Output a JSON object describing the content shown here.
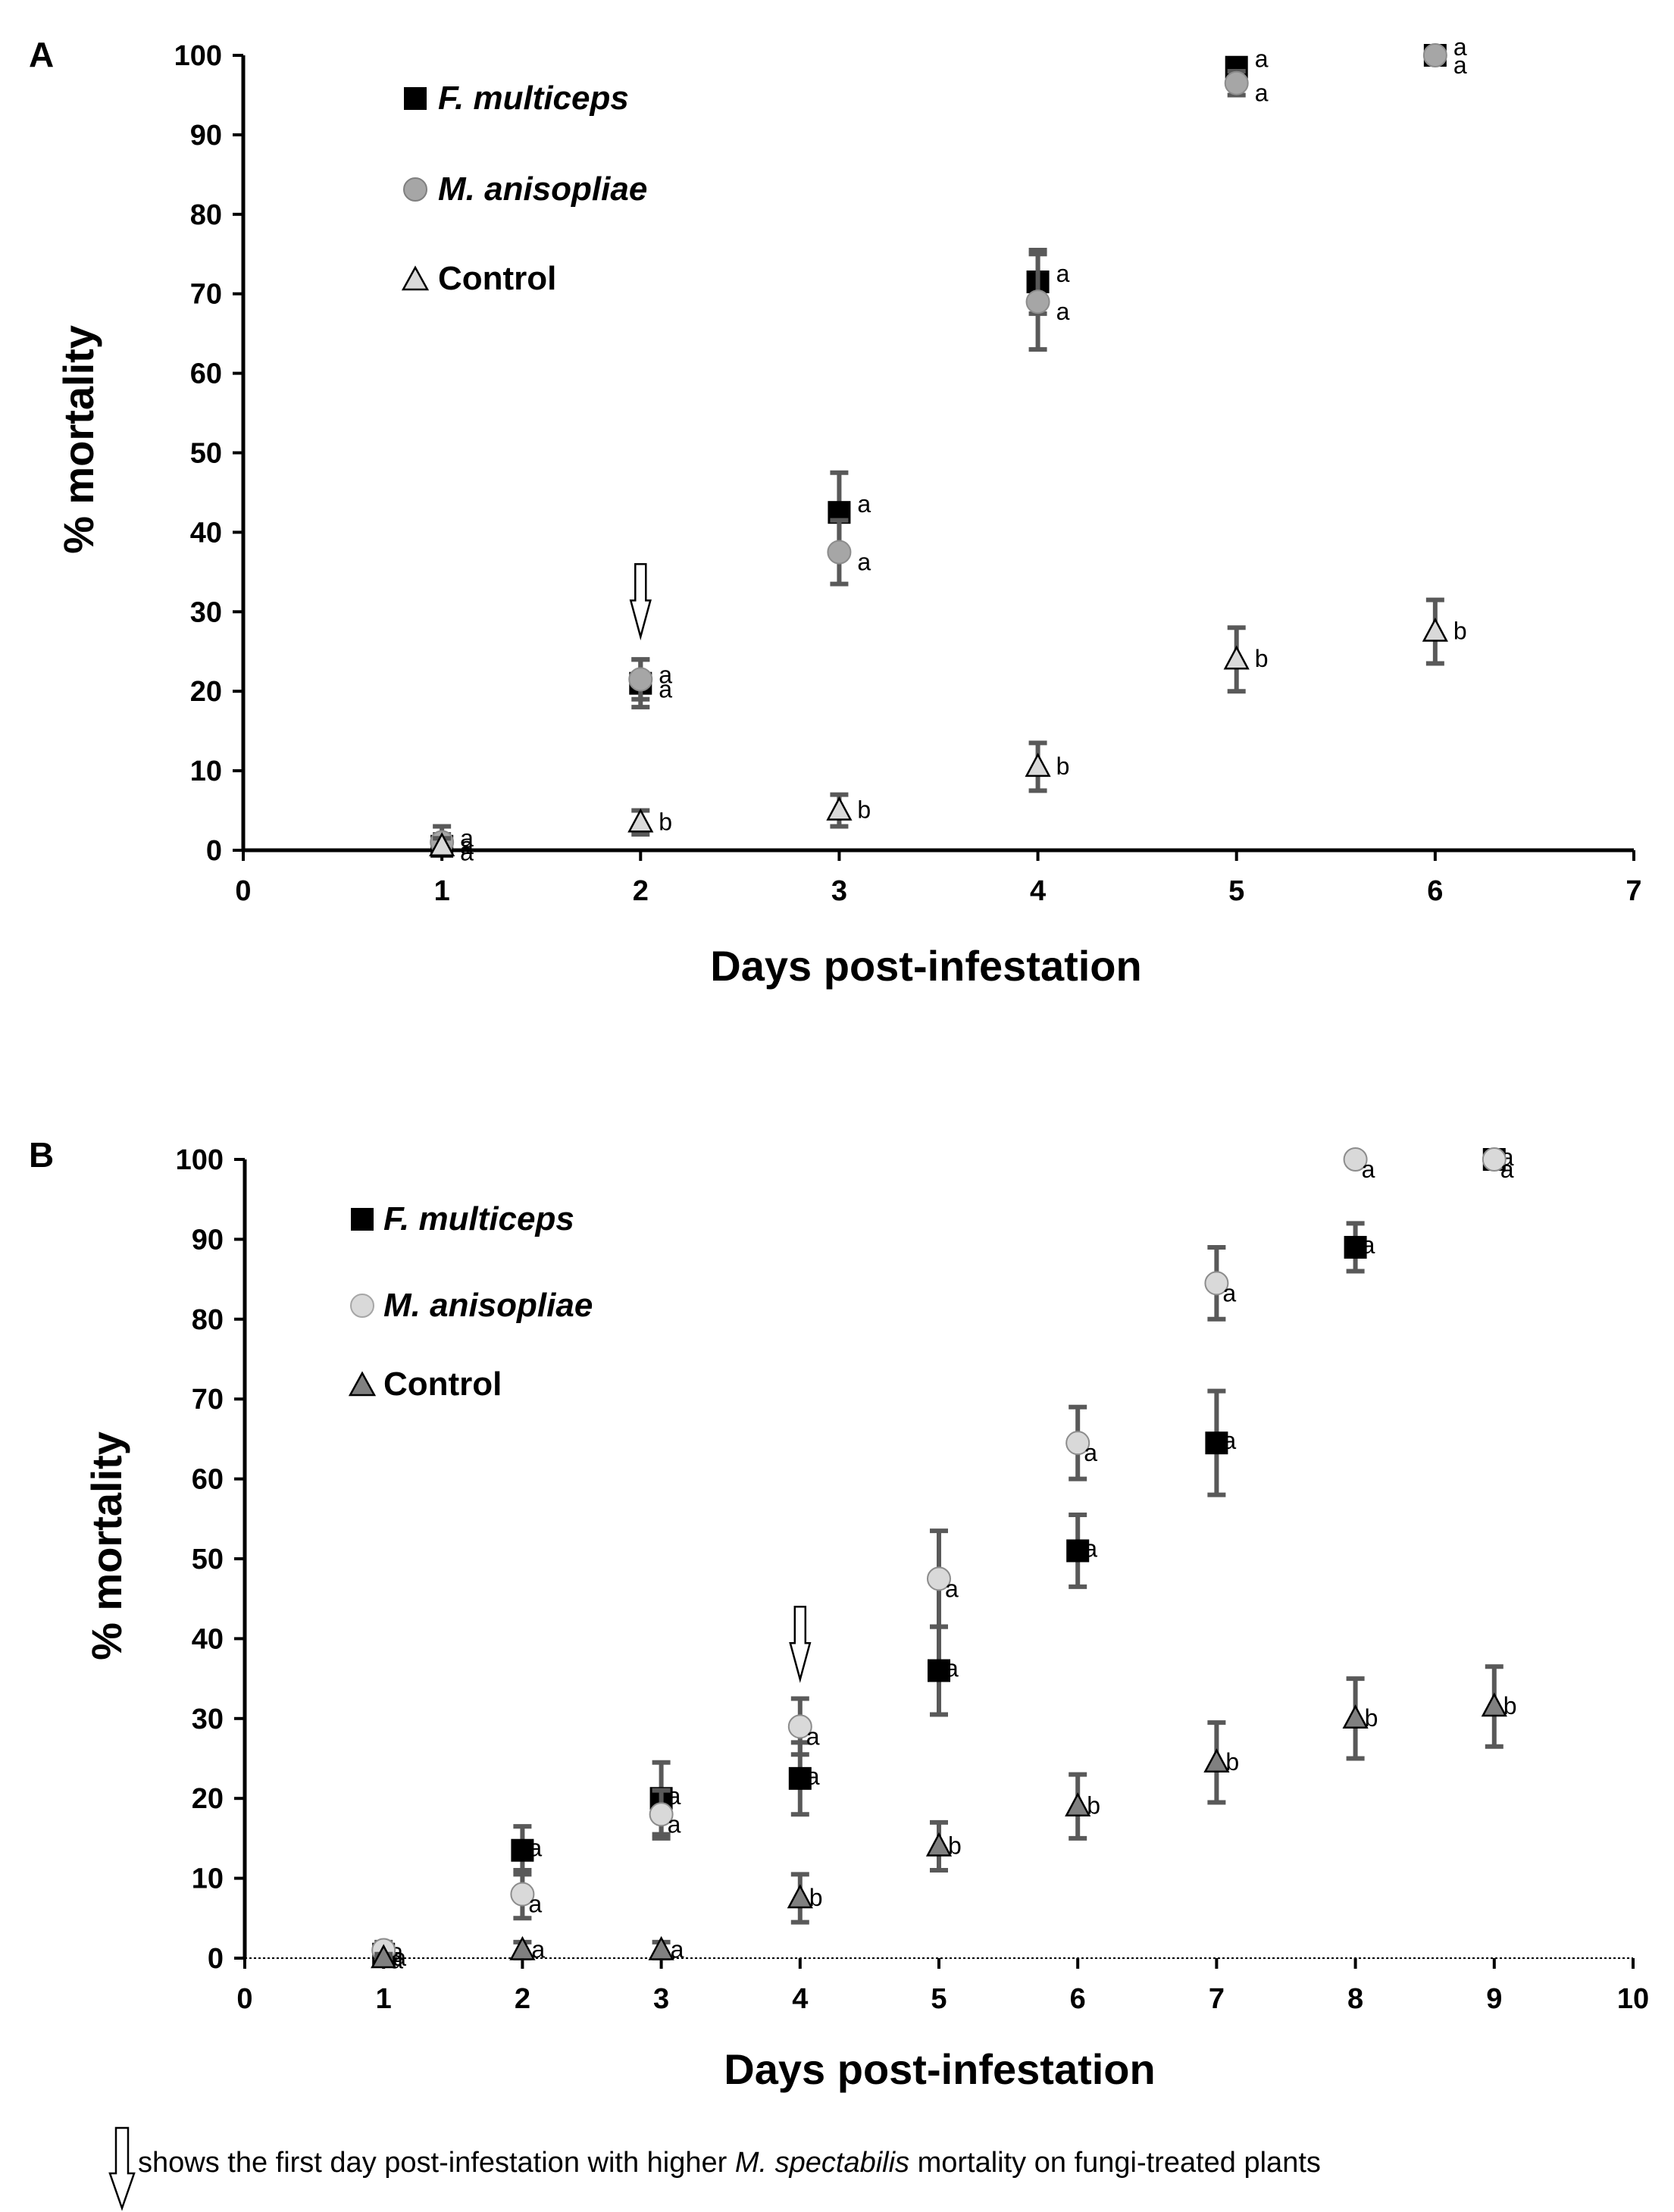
{
  "figure_note": {
    "before": "shows the first day post-infestation with higher ",
    "species": "M. spectabilis",
    "after": " mortality on fungi-treated plants",
    "icon": "down-arrow-icon"
  },
  "chart_data": [
    {
      "panel": "A",
      "type": "scatter",
      "xlabel": "Days post-infestation",
      "ylabel": "% mortality",
      "xlim": [
        0,
        7
      ],
      "ylim": [
        0,
        100
      ],
      "xticks": [
        "0",
        "1",
        "2",
        "3",
        "4",
        "5",
        "6",
        "7"
      ],
      "yticks": [
        "0",
        "10",
        "20",
        "30",
        "40",
        "50",
        "60",
        "70",
        "80",
        "90",
        "100"
      ],
      "legend_position": "top-left",
      "baseline_style": "solid",
      "arrow_day": 2,
      "colors": {
        "f_multiceps": "#000000",
        "m_anisopliae": "#a6a6a6",
        "control": "#d9d9d9",
        "error_bar": "#595959"
      },
      "series": [
        {
          "key": "f_multiceps",
          "name": "F. multiceps",
          "marker": "square",
          "x": [
            1,
            2,
            3,
            4,
            5,
            6
          ],
          "y": [
            0.5,
            21.0,
            42.5,
            71.5,
            98.5,
            100
          ],
          "err": [
            1.5,
            3.0,
            5.0,
            4.0,
            1.0,
            0
          ],
          "letters": [
            "a",
            "a",
            "a",
            "a",
            "a",
            "a"
          ]
        },
        {
          "key": "m_anisopliae",
          "name": "M. anisopliae",
          "marker": "circle",
          "x": [
            1,
            2,
            3,
            4,
            5,
            6
          ],
          "y": [
            1.0,
            21.5,
            37.5,
            69.0,
            96.5,
            100
          ],
          "err": [
            2.0,
            2.5,
            4.0,
            6.0,
            1.5,
            0
          ],
          "letters": [
            "a",
            "a",
            "a",
            "a",
            "a",
            "a"
          ]
        },
        {
          "key": "control",
          "name": "Control",
          "marker": "triangle",
          "x": [
            1,
            2,
            3,
            4,
            5,
            6
          ],
          "y": [
            0.5,
            3.5,
            5.0,
            10.5,
            24.0,
            27.5
          ],
          "err": [
            1.0,
            1.5,
            2.0,
            3.0,
            4.0,
            4.0
          ],
          "letters": [
            "a",
            "b",
            "b",
            "b",
            "b",
            "b"
          ]
        }
      ]
    },
    {
      "panel": "B",
      "type": "scatter",
      "xlabel": "Days post-infestation",
      "ylabel": "% mortality",
      "xlim": [
        0,
        10
      ],
      "ylim": [
        0,
        100
      ],
      "xticks": [
        "0",
        "1",
        "2",
        "3",
        "4",
        "5",
        "6",
        "7",
        "8",
        "9",
        "10"
      ],
      "yticks": [
        "0",
        "10",
        "20",
        "30",
        "40",
        "50",
        "60",
        "70",
        "80",
        "90",
        "100"
      ],
      "legend_position": "top-left",
      "baseline_style": "dotted",
      "arrow_day": 4,
      "colors": {
        "f_multiceps": "#000000",
        "m_anisopliae": "#d9d9d9",
        "control": "#808080",
        "error_bar": "#595959"
      },
      "series": [
        {
          "key": "f_multiceps",
          "name": "F. multiceps",
          "marker": "square",
          "x": [
            1,
            2,
            3,
            4,
            5,
            6,
            7,
            8,
            9
          ],
          "y": [
            0.5,
            13.5,
            20.0,
            22.5,
            36.0,
            51.0,
            64.5,
            89.0,
            100
          ],
          "err": [
            1.0,
            3.0,
            4.5,
            4.5,
            5.5,
            4.5,
            6.5,
            3.0,
            0
          ],
          "letters": [
            "a",
            "a",
            "a",
            "a",
            "a",
            "a",
            "a",
            "a",
            "a"
          ]
        },
        {
          "key": "m_anisopliae",
          "name": "M. anisopliae",
          "marker": "circle",
          "x": [
            1,
            2,
            3,
            4,
            5,
            6,
            7,
            8,
            9
          ],
          "y": [
            1.0,
            8.0,
            18.0,
            29.0,
            47.5,
            64.5,
            84.5,
            100,
            100
          ],
          "err": [
            1.0,
            3.0,
            3.0,
            3.5,
            6.0,
            4.5,
            4.5,
            0,
            0
          ],
          "letters": [
            "a",
            "a",
            "a",
            "a",
            "a",
            "a",
            "a",
            "a",
            "a"
          ]
        },
        {
          "key": "control",
          "name": "Control",
          "marker": "triangle",
          "x": [
            1,
            2,
            3,
            4,
            5,
            6,
            7,
            8,
            9
          ],
          "y": [
            0.0,
            1.0,
            1.0,
            7.5,
            14.0,
            19.0,
            24.5,
            30.0,
            31.5
          ],
          "err": [
            0.5,
            1.0,
            1.0,
            3.0,
            3.0,
            4.0,
            5.0,
            5.0,
            5.0
          ],
          "letters": [
            "a",
            "a",
            "a",
            "b",
            "b",
            "b",
            "b",
            "b",
            "b"
          ]
        }
      ]
    }
  ]
}
